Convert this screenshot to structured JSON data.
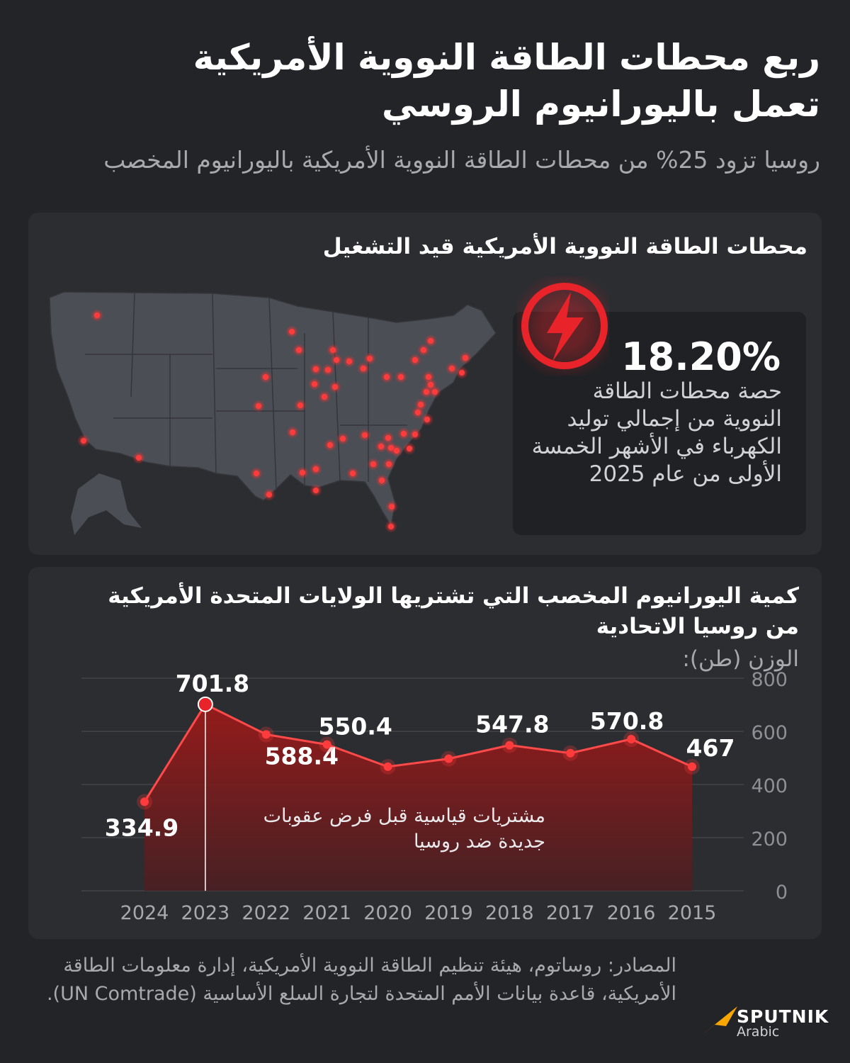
{
  "header": {
    "title_line1": "ربع محطات الطاقة النووية الأمريكية",
    "title_line2": "تعمل باليورانيوم الروسي",
    "subtitle": "روسيا تزود 25% من محطات الطاقة النووية الأمريكية باليورانيوم المخصب"
  },
  "map_section": {
    "title": "محطات الطاقة النووية الأمريكية قيد التشغيل",
    "icon": "lightning-bolt-icon",
    "stat_value": "18.20%",
    "stat_description": "حصة محطات الطاقة النووية من إجمالي توليد الكهرباء في الأشهر الخمسة الأولى من عام 2025"
  },
  "chart_data": {
    "type": "area",
    "title": "كمية اليورانيوم المخصب التي تشتريها الولايات المتحدة الأمريكية من روسيا الاتحادية",
    "ylabel": "الوزن (طن):",
    "x": [
      "2024",
      "2023",
      "2022",
      "2021",
      "2020",
      "2019",
      "2018",
      "2017",
      "2016",
      "2015"
    ],
    "values": [
      334.9,
      701.8,
      588.4,
      550.4,
      467,
      497,
      547.8,
      518,
      570.8,
      467
    ],
    "data_labels": [
      "334.9",
      "701.8",
      "588.4",
      "550.4",
      "",
      "",
      "547.8",
      "",
      "570.8",
      "467"
    ],
    "ylim": [
      0,
      800
    ],
    "yticks": [
      "0",
      "200",
      "400",
      "600",
      "800"
    ],
    "grid": true,
    "annotation": "مشتريات قياسية قبل فرض عقوبات جديدة ضد روسيا",
    "annotation_year": "2023",
    "colors": {
      "line": "#ff4a4a",
      "fill": "#8e1616",
      "point": "#e8242a"
    }
  },
  "footer": {
    "sources": "المصادر: روساتوم، هيئة تنظيم الطاقة النووية الأمريكية، إدارة معلومات الطاقة الأمريكية، قاعدة بيانات الأمم المتحدة لتجارة السلع الأساسية (UN Comtrade).",
    "logo_name": "SPUTNIK",
    "logo_sub": "Arabic"
  },
  "colors": {
    "background": "#232427",
    "panel": "#2c2d31",
    "accent": "#e8242a"
  }
}
